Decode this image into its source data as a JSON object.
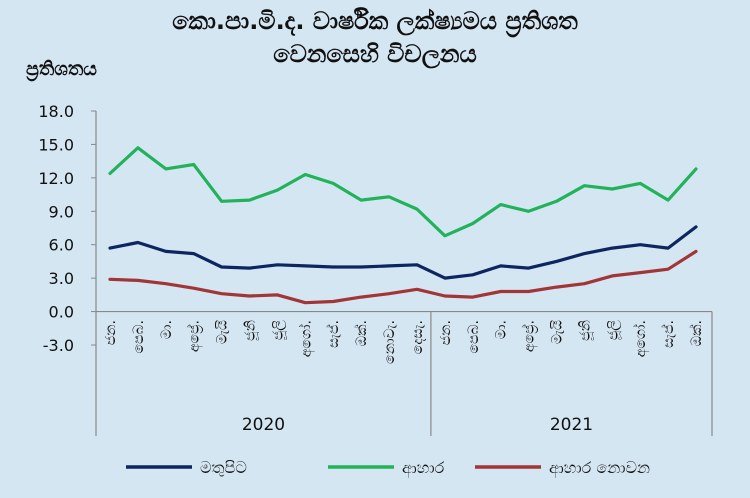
{
  "chart_data": {
    "type": "line",
    "title_line1": "කො.පා.මි.ද. වාර්ෂික ලක්ෂ්‍යමය ප්‍රතිශත",
    "title_line2": "වෙනසෙහි විචලනය",
    "ylabel": "ප්‍රතිශතය",
    "ylim": [
      -3.0,
      18.0
    ],
    "yticks": [
      "18.0",
      "15.0",
      "12.0",
      "9.0",
      "6.0",
      "3.0",
      "0.0",
      "-3.0"
    ],
    "ytick_values": [
      18,
      15,
      12,
      9,
      6,
      3,
      0,
      -3
    ],
    "categories": [
      "ජන.",
      "පෙබ.",
      "මා.",
      "අප්‍රේ.",
      "මැයි",
      "ජූනි",
      "ජූලි",
      "අගෝ.",
      "සැප්.",
      "ඔක්.",
      "නොවැ.",
      "දෙසැ.",
      "ජන.",
      "පෙබ.",
      "මා.",
      "අප්‍රේ.",
      "මැයි",
      "ජූනි",
      "ජූලි",
      "අගෝ.",
      "සැප්.",
      "ඔක්."
    ],
    "years": [
      {
        "label": "2020",
        "start": 0,
        "end": 11
      },
      {
        "label": "2021",
        "start": 12,
        "end": 21
      }
    ],
    "series": [
      {
        "name": "මතුපිට",
        "color": "#0d2660",
        "values": [
          5.7,
          6.2,
          5.4,
          5.2,
          4.0,
          3.9,
          4.2,
          4.1,
          4.0,
          4.0,
          4.1,
          4.2,
          3.0,
          3.3,
          4.1,
          3.9,
          4.5,
          5.2,
          5.7,
          6.0,
          5.7,
          7.6
        ]
      },
      {
        "name": "ආහාර",
        "color": "#22b35a",
        "values": [
          12.4,
          14.7,
          12.8,
          13.2,
          9.9,
          10.0,
          10.9,
          12.3,
          11.5,
          10.0,
          10.3,
          9.2,
          6.8,
          7.9,
          9.6,
          9.0,
          9.9,
          11.3,
          11.0,
          11.5,
          10.0,
          12.8
        ]
      },
      {
        "name": "ආහාර නොවන",
        "color": "#a23535",
        "values": [
          2.9,
          2.8,
          2.5,
          2.1,
          1.6,
          1.4,
          1.5,
          0.8,
          0.9,
          1.3,
          1.6,
          2.0,
          1.4,
          1.3,
          1.8,
          1.8,
          2.2,
          2.5,
          3.2,
          3.5,
          3.8,
          5.4
        ]
      }
    ],
    "legend_position": "bottom",
    "grid": false
  }
}
